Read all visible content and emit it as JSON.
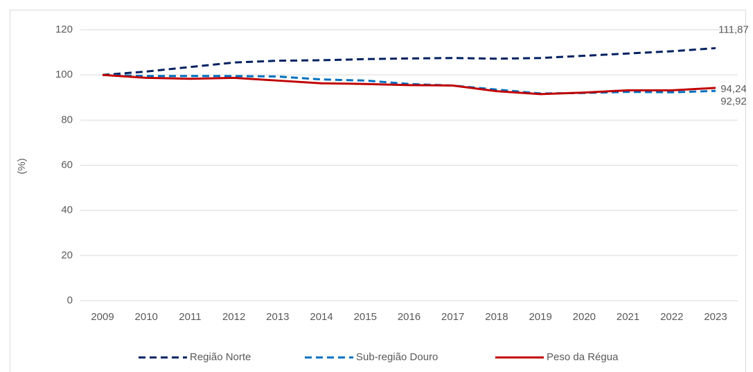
{
  "chart_data": {
    "type": "line",
    "y_label": "(%)",
    "categories": [
      "2009",
      "2010",
      "2011",
      "2012",
      "2013",
      "2014",
      "2015",
      "2016",
      "2017",
      "2018",
      "2019",
      "2020",
      "2021",
      "2022",
      "2023"
    ],
    "series": [
      {
        "name": "Região Norte",
        "color": "#002060",
        "dash": true,
        "values": [
          100,
          101.5,
          103.5,
          105.5,
          106.3,
          106.5,
          107,
          107.3,
          107.5,
          107.2,
          107.5,
          108.5,
          109.5,
          110.5,
          111.87
        ],
        "value_labels": [
          null,
          null,
          null,
          null,
          null,
          null,
          null,
          null,
          null,
          null,
          null,
          null,
          null,
          null,
          "111,87"
        ]
      },
      {
        "name": "Sub-região Douro",
        "color": "#0070c0",
        "dash": true,
        "values": [
          100,
          99.5,
          99.5,
          99.5,
          99.3,
          98,
          97.5,
          96,
          95.3,
          93.5,
          91.8,
          92,
          92.5,
          92.3,
          92.92
        ],
        "value_labels": [
          null,
          null,
          null,
          null,
          null,
          null,
          null,
          null,
          null,
          null,
          null,
          null,
          null,
          null,
          "92,92"
        ]
      },
      {
        "name": "Peso da Régua",
        "color": "#c00000",
        "dash": false,
        "values": [
          100,
          98.7,
          98.3,
          98.7,
          97.5,
          96.3,
          96,
          95.5,
          95.3,
          92.8,
          91.5,
          92.2,
          93.2,
          93.2,
          94.24
        ],
        "value_labels": [
          null,
          null,
          null,
          null,
          null,
          null,
          null,
          null,
          null,
          null,
          null,
          null,
          null,
          null,
          "94,24"
        ]
      }
    ],
    "ylim": [
      0,
      120
    ],
    "yticks": [
      0,
      20,
      40,
      60,
      80,
      100,
      120
    ],
    "grid": true,
    "legend": "bottom"
  }
}
